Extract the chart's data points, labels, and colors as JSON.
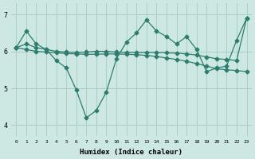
{
  "x": [
    0,
    1,
    2,
    3,
    4,
    5,
    6,
    7,
    8,
    9,
    10,
    11,
    12,
    13,
    14,
    15,
    16,
    17,
    18,
    19,
    20,
    21,
    22,
    23
  ],
  "y_main": [
    6.1,
    6.55,
    6.2,
    6.05,
    5.75,
    5.55,
    4.95,
    4.2,
    4.4,
    4.9,
    5.8,
    6.25,
    6.5,
    6.85,
    6.55,
    6.4,
    6.2,
    6.4,
    6.05,
    5.45,
    5.55,
    5.6,
    6.3,
    6.9
  ],
  "y_trend1": [
    6.1,
    6.2,
    6.1,
    6.05,
    6.0,
    5.98,
    5.97,
    5.98,
    6.0,
    6.0,
    5.98,
    5.97,
    5.97,
    5.97,
    5.97,
    5.96,
    5.95,
    5.93,
    5.9,
    5.85,
    5.8,
    5.78,
    5.75,
    6.9
  ],
  "y_trend2": [
    6.1,
    6.05,
    6.0,
    5.98,
    5.96,
    5.94,
    5.93,
    5.92,
    5.92,
    5.93,
    5.93,
    5.92,
    5.91,
    5.89,
    5.86,
    5.82,
    5.78,
    5.73,
    5.67,
    5.6,
    5.53,
    5.5,
    5.48,
    5.45
  ],
  "line_color": "#2d7d6e",
  "bg_color": "#cde8e3",
  "grid_color": "#aacfc8",
  "xlabel": "Humidex (Indice chaleur)",
  "yticks": [
    4,
    5,
    6,
    7
  ],
  "xticks": [
    0,
    1,
    2,
    3,
    4,
    5,
    6,
    7,
    8,
    9,
    10,
    11,
    12,
    13,
    14,
    15,
    16,
    17,
    18,
    19,
    20,
    21,
    22,
    23
  ],
  "xlim": [
    -0.5,
    23.5
  ],
  "ylim": [
    3.7,
    7.3
  ]
}
